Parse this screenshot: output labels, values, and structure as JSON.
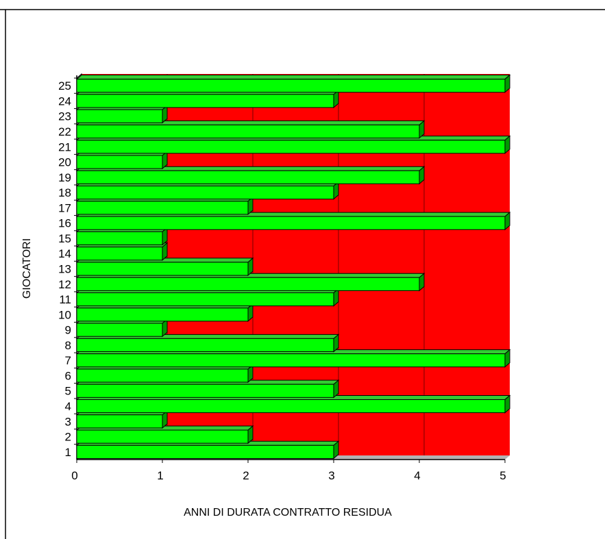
{
  "chart_data": {
    "type": "bar",
    "orientation": "horizontal",
    "three_d": true,
    "categories": [
      "1",
      "2",
      "3",
      "4",
      "5",
      "6",
      "7",
      "8",
      "9",
      "10",
      "11",
      "12",
      "13",
      "14",
      "15",
      "16",
      "17",
      "18",
      "19",
      "20",
      "21",
      "22",
      "23",
      "24",
      "25"
    ],
    "values": [
      3,
      2,
      1,
      5,
      3,
      2,
      5,
      3,
      1,
      2,
      3,
      4,
      2,
      1,
      1,
      5,
      2,
      3,
      4,
      1,
      5,
      4,
      1,
      3,
      5
    ],
    "x_ticks": [
      "0",
      "1",
      "2",
      "3",
      "4",
      "5"
    ],
    "xlim": [
      0,
      5
    ],
    "xlabel": "ANNI DI DURATA CONTRATTO RESIDUA",
    "ylabel": "GIOCATORI",
    "title": "",
    "grid": "vertical",
    "legend": "none",
    "colors": {
      "bar": "#00ff00",
      "bar_side": "#009a00",
      "bar_top": "#33cc33",
      "plot_background": "#ff0000",
      "plot_floor": "#b3b3b3",
      "gridline": "#7a0000"
    }
  }
}
